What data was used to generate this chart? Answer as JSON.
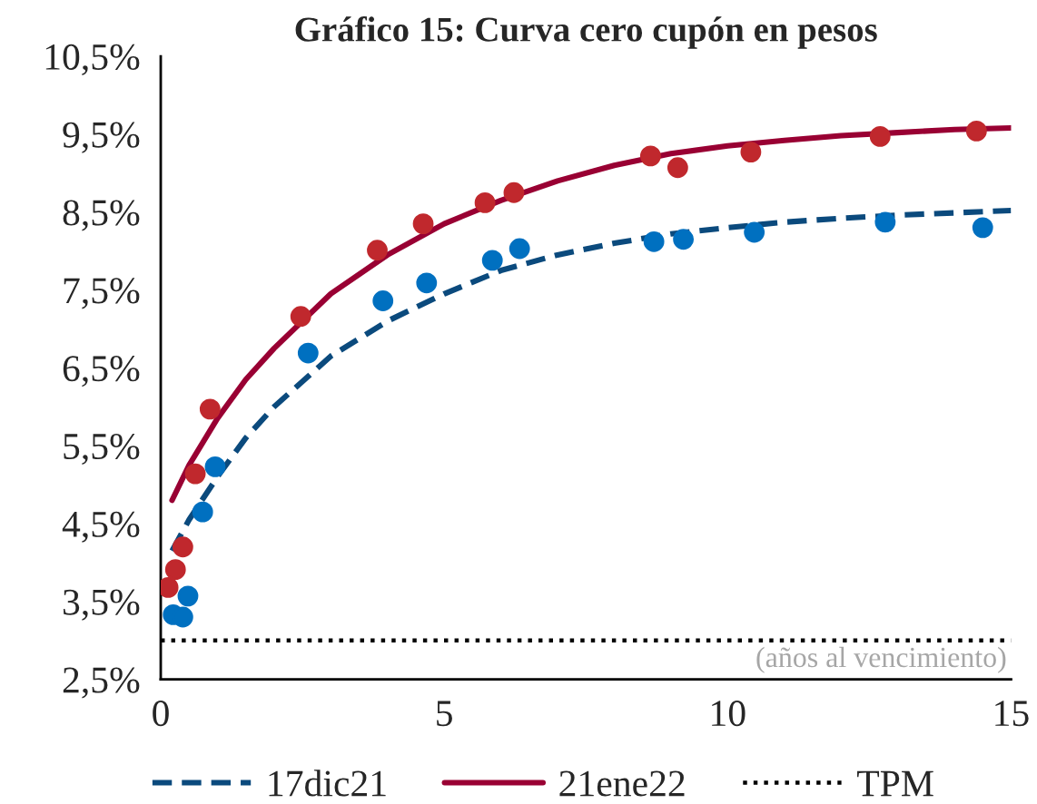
{
  "chart_data": {
    "type": "scatter",
    "title": "Gráfico 15: Curva cero cupón en pesos",
    "series": [
      {
        "color": "#0070c0",
        "x": [
          0.22,
          0.39,
          0.48,
          0.74,
          0.96,
          2.6,
          3.92,
          4.69,
          5.85,
          6.33,
          8.7,
          9.22,
          10.47,
          12.78,
          14.5
        ],
        "values": [
          3.33,
          3.3,
          3.57,
          4.65,
          5.23,
          6.69,
          7.36,
          7.59,
          7.88,
          8.03,
          8.12,
          8.15,
          8.24,
          8.37,
          8.3
        ]
      },
      {
        "color": "#c0282d",
        "x": [
          0.13,
          0.26,
          0.39,
          0.61,
          0.87,
          2.47,
          3.82,
          4.63,
          5.72,
          6.23,
          8.64,
          9.12,
          10.41,
          12.69,
          14.39
        ],
        "values": [
          3.68,
          3.91,
          4.2,
          5.14,
          5.97,
          7.16,
          8.01,
          8.35,
          8.62,
          8.75,
          9.22,
          9.07,
          9.27,
          9.47,
          9.54
        ]
      },
      {
        "type": "line",
        "name": "17dic21",
        "color": "#0b4a7d",
        "line_style": "dashed",
        "x": [
          0.2,
          0.5,
          1,
          1.5,
          2,
          3,
          4,
          5,
          6,
          7,
          8,
          9,
          10,
          11,
          12,
          13,
          14,
          15
        ],
        "values": [
          4.15,
          4.55,
          5.1,
          5.6,
          6.0,
          6.65,
          7.1,
          7.45,
          7.75,
          7.95,
          8.1,
          8.22,
          8.3,
          8.37,
          8.42,
          8.46,
          8.49,
          8.52
        ]
      },
      {
        "type": "line",
        "name": "21ene22",
        "color": "#990033",
        "line_style": "solid",
        "x": [
          0.2,
          0.5,
          1,
          1.5,
          2,
          3,
          4,
          5,
          6,
          7,
          8,
          9,
          10,
          11,
          12,
          13,
          14,
          15
        ],
        "values": [
          4.8,
          5.25,
          5.85,
          6.35,
          6.75,
          7.45,
          7.95,
          8.35,
          8.65,
          8.9,
          9.1,
          9.25,
          9.35,
          9.42,
          9.48,
          9.52,
          9.56,
          9.58
        ]
      }
    ],
    "ref_lines": [
      {
        "axis": "y",
        "value": 3.0,
        "label": "TPM",
        "color": "#000000",
        "line_style": "dotted"
      }
    ],
    "annotations": [
      "(años al vencimiento)"
    ],
    "xlim": [
      0,
      15
    ],
    "xticks": [
      0,
      5,
      10,
      15
    ],
    "ylim": [
      2.5,
      10.5
    ],
    "yticks": [
      {
        "value": 2.5,
        "label": "2,5%"
      },
      {
        "value": 3.5,
        "label": "3,5%"
      },
      {
        "value": 4.5,
        "label": "4,5%"
      },
      {
        "value": 5.5,
        "label": "5,5%"
      },
      {
        "value": 6.5,
        "label": "6,5%"
      },
      {
        "value": 7.5,
        "label": "7,5%"
      },
      {
        "value": 8.5,
        "label": "8,5%"
      },
      {
        "value": 9.5,
        "label": "9,5%"
      },
      {
        "value": 10.5,
        "label": "10,5%"
      }
    ],
    "legend": "bottom",
    "grid": false
  }
}
